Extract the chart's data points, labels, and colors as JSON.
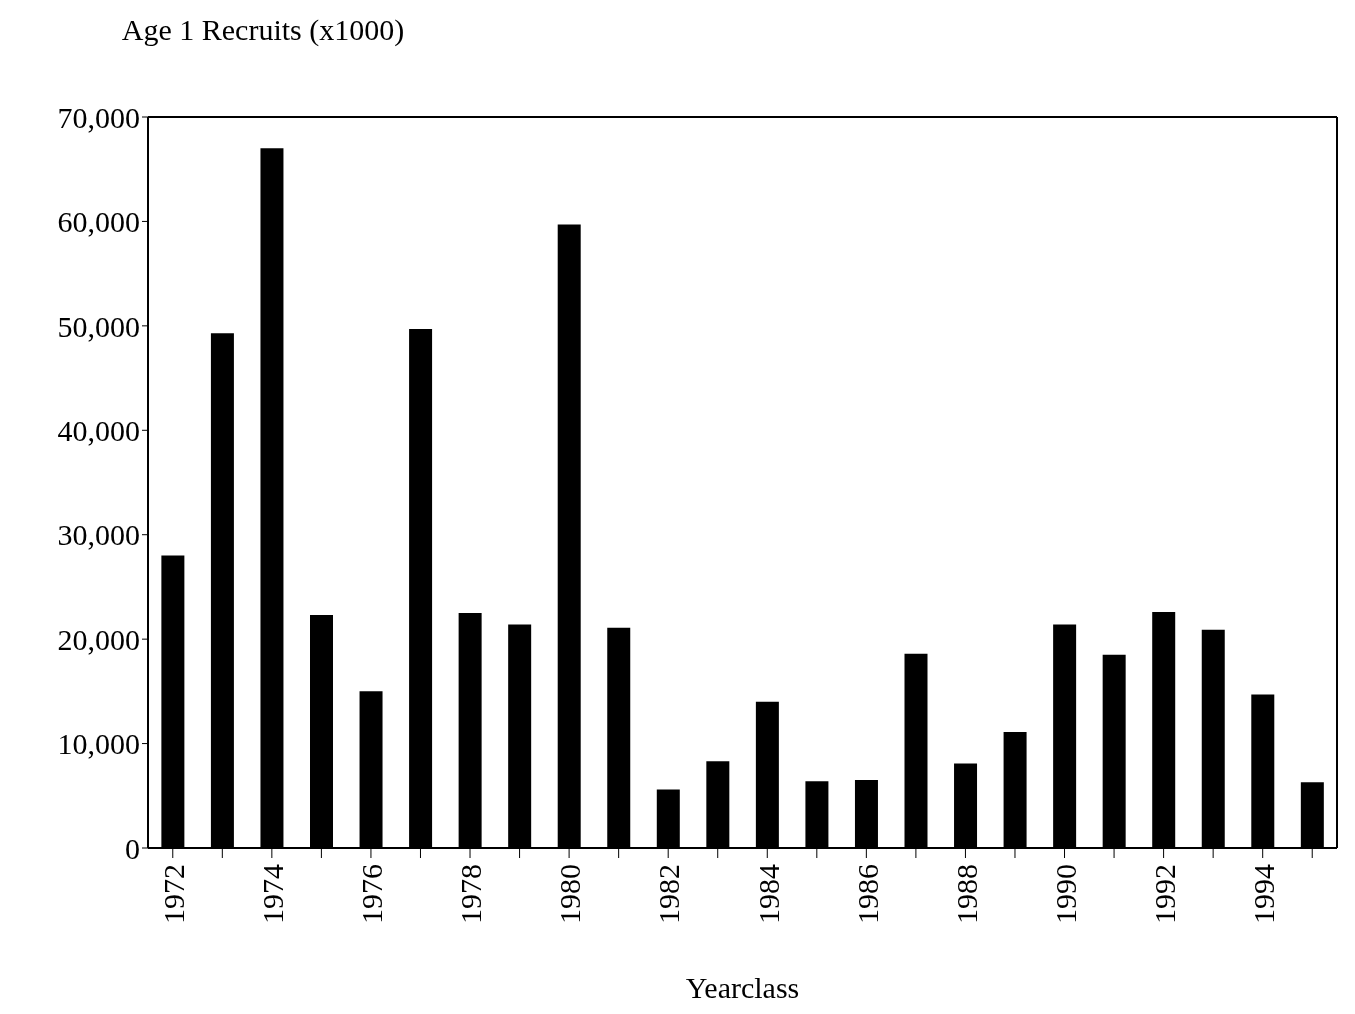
{
  "chart_data": {
    "type": "bar",
    "xlabel": "Yearclass",
    "ylabel": "Age 1 Recruits (x1000)",
    "categories": [
      "1972",
      null,
      "1974",
      null,
      "1976",
      null,
      "1978",
      null,
      "1980",
      null,
      "1982",
      null,
      "1984",
      null,
      "1986",
      null,
      "1988",
      null,
      "1990",
      null,
      "1992",
      null,
      "1994",
      null
    ],
    "values": [
      28000,
      49300,
      67000,
      22300,
      15000,
      49700,
      22500,
      21400,
      59700,
      21100,
      5600,
      8300,
      14000,
      6400,
      6500,
      18600,
      8100,
      11100,
      21400,
      18500,
      22600,
      20900,
      14700,
      6300
    ],
    "color": "#000000",
    "ylim": [
      0,
      70000
    ],
    "yticks": [
      {
        "value": 0,
        "label": "0"
      },
      {
        "value": 10000,
        "label": "10,000"
      },
      {
        "value": 20000,
        "label": "20,000"
      },
      {
        "value": 30000,
        "label": "30,000"
      },
      {
        "value": 40000,
        "label": "40,000"
      },
      {
        "value": 50000,
        "label": "50,000"
      },
      {
        "value": 60000,
        "label": "60,000"
      },
      {
        "value": 70000,
        "label": "70,000"
      }
    ]
  }
}
